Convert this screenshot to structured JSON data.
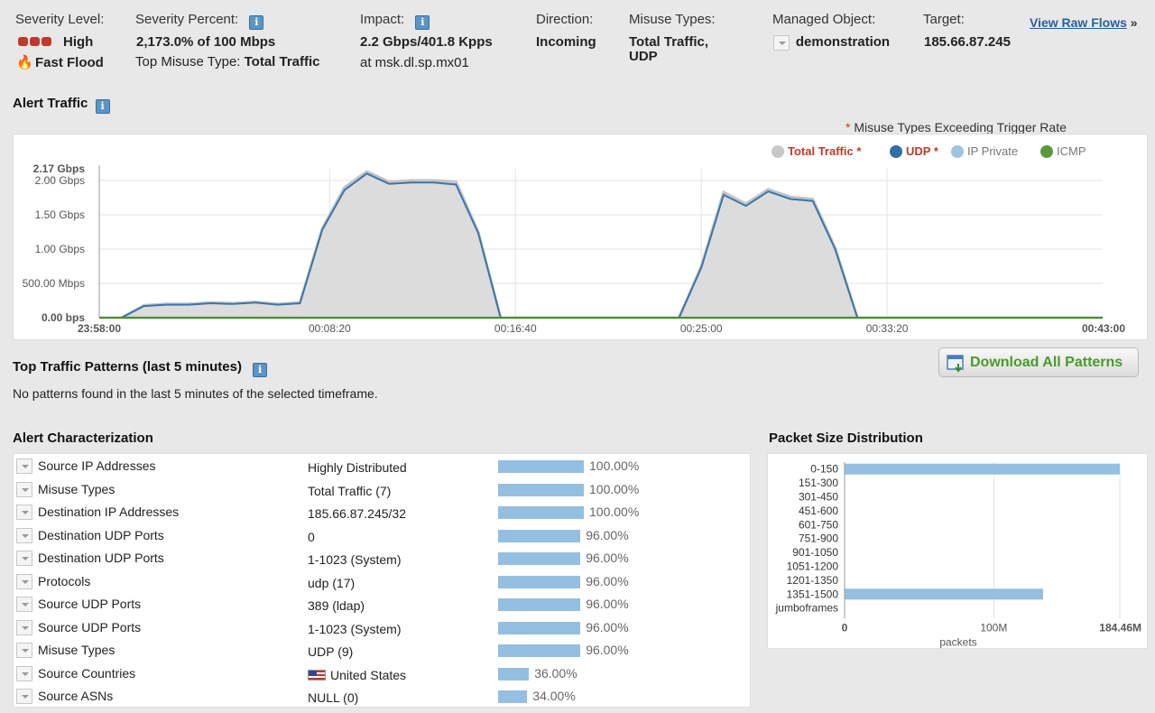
{
  "header": {
    "severity_level_label": "Severity Level:",
    "severity_value": "High",
    "flood_type": "Fast Flood",
    "severity_percent_label": "Severity Percent:",
    "severity_percent_value": "2,173.0% of 100 Mbps",
    "top_misuse_label": "Top Misuse Type:",
    "top_misuse_value": "Total Traffic",
    "impact_label": "Impact:",
    "impact_value": "2.2 Gbps/401.8 Kpps",
    "impact_location": "at msk.dl.sp.mx01",
    "direction_label": "Direction:",
    "direction_value": "Incoming",
    "misuse_types_label": "Misuse Types:",
    "misuse_types_value_1": "Total Traffic,",
    "misuse_types_value_2": "UDP",
    "managed_object_label": "Managed Object:",
    "managed_object_value": "demonstration",
    "target_label": "Target:",
    "target_value": "185.66.87.245",
    "view_raw_flows": "View Raw Flows",
    "raw_flows_arrow": "»"
  },
  "alert_traffic": {
    "title": "Alert Traffic",
    "note_star": "*",
    "note": "Misuse Types Exceeding Trigger Rate",
    "legend": [
      {
        "name": "Total Traffic *",
        "color": "#c8c8c8",
        "text_color": "#c0392b",
        "bold": true
      },
      {
        "name": "UDP *",
        "color": "#2f6fa6",
        "text_color": "#c0392b",
        "bold": true
      },
      {
        "name": "IP Private",
        "color": "#9cc4e4",
        "text_color": "#777",
        "bold": false
      },
      {
        "name": "ICMP",
        "color": "#5a9a3a",
        "text_color": "#777",
        "bold": false
      }
    ]
  },
  "chart_data": {
    "type": "area",
    "title": "",
    "xlabel": "",
    "ylabel": "",
    "ylim": [
      0,
      2.17
    ],
    "y_ticks": [
      {
        "value": 0,
        "label": "0.00 bps"
      },
      {
        "value": 0.5,
        "label": "500.00 Mbps"
      },
      {
        "value": 1.0,
        "label": "1.00 Gbps"
      },
      {
        "value": 1.5,
        "label": "1.50 Gbps"
      },
      {
        "value": 2.0,
        "label": "2.00 Gbps"
      },
      {
        "value": 2.17,
        "label": "2.17 Gbps"
      }
    ],
    "x_range_minutes": [
      0,
      45
    ],
    "x_ticks": [
      {
        "value": 0,
        "label": "23:58:00"
      },
      {
        "value": 10.333,
        "label": "00:08:20"
      },
      {
        "value": 18.667,
        "label": "00:16:40"
      },
      {
        "value": 27,
        "label": "00:25:00"
      },
      {
        "value": 35.333,
        "label": "00:33:20"
      },
      {
        "value": 45,
        "label": "00:43:00"
      }
    ],
    "series": [
      {
        "name": "Total Traffic *",
        "x": [
          0,
          1,
          2,
          3,
          4,
          5,
          6,
          7,
          8,
          9,
          10,
          11,
          12,
          13,
          14,
          15,
          16,
          17,
          18,
          19,
          26,
          27,
          28,
          29,
          30,
          31,
          32,
          33,
          34,
          35,
          36,
          45
        ],
        "values": [
          0,
          0,
          0.18,
          0.2,
          0.2,
          0.22,
          0.21,
          0.23,
          0.2,
          0.22,
          1.3,
          1.9,
          2.13,
          1.98,
          2.0,
          2.0,
          1.98,
          1.25,
          0,
          0,
          0,
          0.75,
          1.83,
          1.66,
          1.87,
          1.76,
          1.73,
          1.02,
          0,
          0,
          0,
          0
        ]
      },
      {
        "name": "UDP *",
        "x": [
          0,
          1,
          2,
          3,
          4,
          5,
          6,
          7,
          8,
          9,
          10,
          11,
          12,
          13,
          14,
          15,
          16,
          17,
          18,
          19,
          26,
          27,
          28,
          29,
          30,
          31,
          32,
          33,
          34,
          35,
          36,
          45
        ],
        "values": [
          0,
          0,
          0.17,
          0.19,
          0.19,
          0.21,
          0.2,
          0.22,
          0.19,
          0.21,
          1.28,
          1.86,
          2.1,
          1.95,
          1.97,
          1.97,
          1.94,
          1.23,
          0,
          0,
          0,
          0.73,
          1.79,
          1.63,
          1.84,
          1.73,
          1.7,
          1.0,
          0,
          0,
          0,
          0
        ]
      },
      {
        "name": "ICMP",
        "x": [
          0,
          45
        ],
        "values": [
          0,
          0
        ]
      }
    ]
  },
  "patterns": {
    "title": "Top Traffic Patterns (last 5 minutes)",
    "empty_message": "No patterns found in the last 5 minutes of the selected timeframe.",
    "download_label": "Download All Patterns"
  },
  "characterization": {
    "title": "Alert Characterization",
    "rows": [
      {
        "name": "Source IP Addresses",
        "value": "Highly Distributed",
        "pct": "100.00%",
        "fraction": 1.0
      },
      {
        "name": "Misuse Types",
        "value": "Total Traffic (7)",
        "pct": "100.00%",
        "fraction": 1.0
      },
      {
        "name": "Destination IP Addresses",
        "value": "185.66.87.245/32",
        "pct": "100.00%",
        "fraction": 1.0
      },
      {
        "name": "Destination UDP Ports",
        "value": "0",
        "pct": "96.00%",
        "fraction": 0.96
      },
      {
        "name": "Destination UDP Ports",
        "value": "1-1023 (System)",
        "pct": "96.00%",
        "fraction": 0.96
      },
      {
        "name": "Protocols",
        "value": "udp (17)",
        "pct": "96.00%",
        "fraction": 0.96
      },
      {
        "name": "Source UDP Ports",
        "value": "389 (ldap)",
        "pct": "96.00%",
        "fraction": 0.96
      },
      {
        "name": "Source UDP Ports",
        "value": "1-1023 (System)",
        "pct": "96.00%",
        "fraction": 0.96
      },
      {
        "name": "Misuse Types",
        "value": "UDP (9)",
        "pct": "96.00%",
        "fraction": 0.96
      },
      {
        "name": "Source Countries",
        "value": "United States",
        "pct": "36.00%",
        "fraction": 0.36,
        "flag": "us-flag-icon"
      },
      {
        "name": "Source ASNs",
        "value": "NULL (0)",
        "pct": "34.00%",
        "fraction": 0.34
      }
    ]
  },
  "packet_size": {
    "title": "Packet Size Distribution",
    "categories": [
      "0-150",
      "151-300",
      "301-450",
      "451-600",
      "601-750",
      "751-900",
      "901-1050",
      "1051-1200",
      "1201-1350",
      "1351-1500",
      "jumboframes"
    ],
    "values_millions": [
      184.46,
      0,
      0,
      0,
      0,
      0,
      0,
      0,
      0,
      133,
      0
    ],
    "x_max_millions": 184.46,
    "x_tick_0": "0",
    "x_tick_mid": "100M",
    "x_tick_max": "184.46M",
    "x_label": "packets"
  }
}
